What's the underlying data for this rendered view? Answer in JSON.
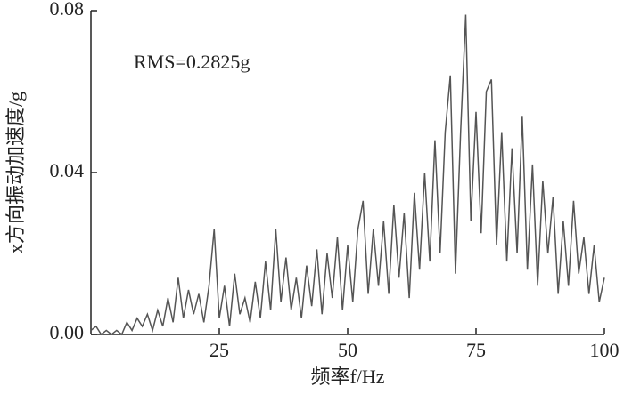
{
  "chart_data": {
    "type": "line",
    "annotation": "RMS=0.2825g",
    "xlabel": "频率f/Hz",
    "ylabel": "x方向振动加速度/g",
    "xlim": [
      0,
      100
    ],
    "xticks": [
      25,
      50,
      75,
      100
    ],
    "ylim": [
      0,
      0.08
    ],
    "yticks": [
      {
        "value": 0,
        "label": "0.00"
      },
      {
        "value": 0.04,
        "label": "0.04"
      },
      {
        "value": 0.08,
        "label": "0.08"
      }
    ],
    "color": "#555555",
    "x": [
      0,
      1,
      2,
      3,
      4,
      5,
      6,
      7,
      8,
      9,
      10,
      11,
      12,
      13,
      14,
      15,
      16,
      17,
      18,
      19,
      20,
      21,
      22,
      23,
      24,
      25,
      26,
      27,
      28,
      29,
      30,
      31,
      32,
      33,
      34,
      35,
      36,
      37,
      38,
      39,
      40,
      41,
      42,
      43,
      44,
      45,
      46,
      47,
      48,
      49,
      50,
      51,
      52,
      53,
      54,
      55,
      56,
      57,
      58,
      59,
      60,
      61,
      62,
      63,
      64,
      65,
      66,
      67,
      68,
      69,
      70,
      71,
      72,
      73,
      74,
      75,
      76,
      77,
      78,
      79,
      80,
      81,
      82,
      83,
      84,
      85,
      86,
      87,
      88,
      89,
      90,
      91,
      92,
      93,
      94,
      95,
      96,
      97,
      98,
      99,
      100
    ],
    "values": [
      0.001,
      0.002,
      0.0,
      0.001,
      0.0,
      0.001,
      0.0,
      0.003,
      0.001,
      0.004,
      0.002,
      0.005,
      0.001,
      0.006,
      0.002,
      0.009,
      0.003,
      0.014,
      0.004,
      0.011,
      0.005,
      0.01,
      0.003,
      0.012,
      0.026,
      0.004,
      0.012,
      0.002,
      0.015,
      0.005,
      0.009,
      0.003,
      0.013,
      0.004,
      0.018,
      0.006,
      0.026,
      0.008,
      0.019,
      0.006,
      0.014,
      0.004,
      0.017,
      0.007,
      0.021,
      0.005,
      0.02,
      0.009,
      0.024,
      0.006,
      0.022,
      0.008,
      0.026,
      0.033,
      0.01,
      0.026,
      0.012,
      0.028,
      0.01,
      0.032,
      0.014,
      0.03,
      0.009,
      0.035,
      0.016,
      0.04,
      0.018,
      0.048,
      0.02,
      0.05,
      0.064,
      0.015,
      0.05,
      0.079,
      0.028,
      0.055,
      0.025,
      0.06,
      0.063,
      0.022,
      0.05,
      0.018,
      0.046,
      0.02,
      0.054,
      0.016,
      0.042,
      0.012,
      0.038,
      0.02,
      0.034,
      0.01,
      0.028,
      0.012,
      0.033,
      0.015,
      0.024,
      0.01,
      0.022,
      0.008,
      0.014
    ]
  }
}
